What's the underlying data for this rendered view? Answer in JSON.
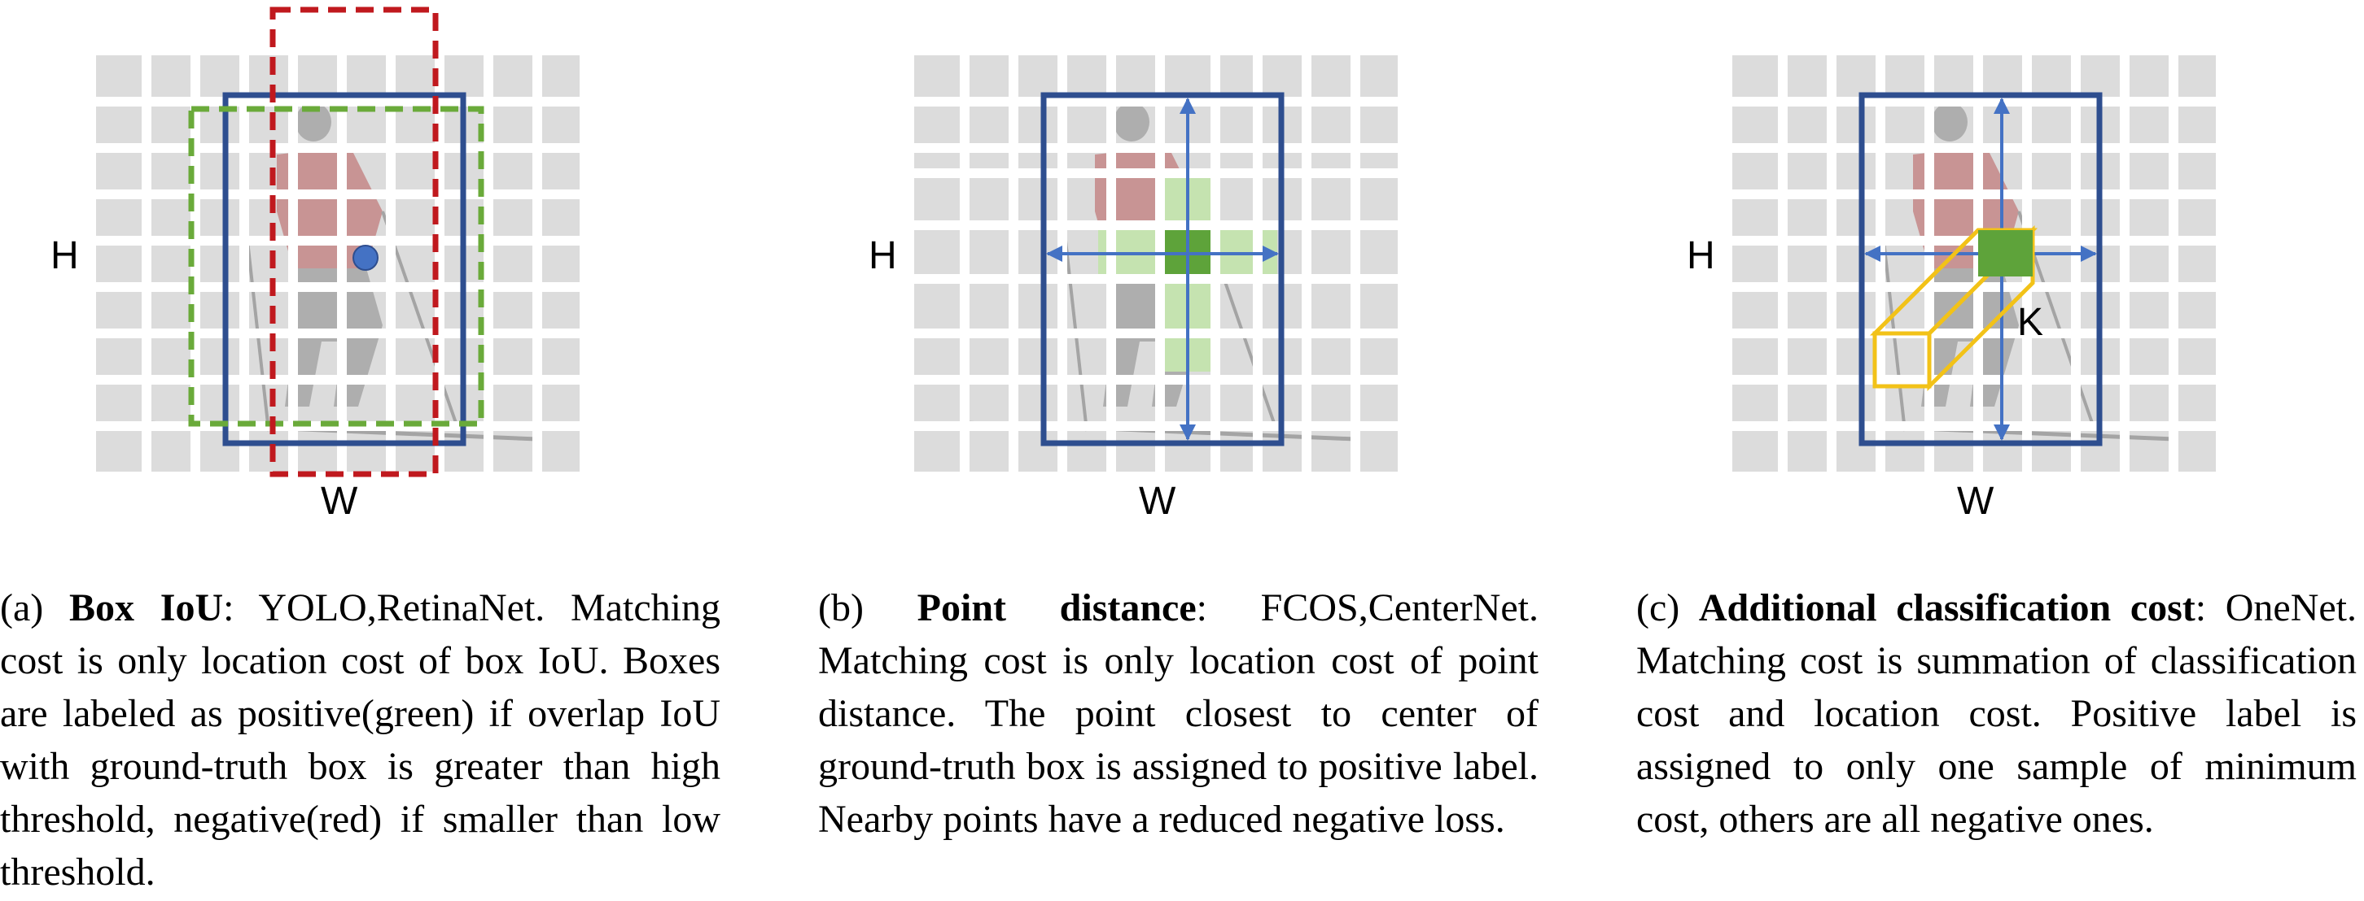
{
  "panels": [
    {
      "id": "a",
      "h_label": "H",
      "w_label": "W",
      "caption_prefix": "(a) ",
      "caption_bold": "Box IoU",
      "caption_rest": ": YOLO,RetinaNet. Match­ing cost is only location cost of box IoU. Boxes are labeled as positive(green) if overlap IoU with ground-truth box is greater than high threshold, negative(red) if smaller than low threshold."
    },
    {
      "id": "b",
      "h_label": "H",
      "w_label": "W",
      "caption_prefix": "(b) ",
      "caption_bold": "Point distance",
      "caption_rest": ": FCOS,CenterNet. Matching cost is only location cost of point distance. The point closest to center of ground-truth box is assigned to posi­tive label. Nearby points have a reduced negative loss."
    },
    {
      "id": "c",
      "h_label": "H",
      "w_label": "W",
      "k_label": "K",
      "caption_prefix": "(c) ",
      "caption_bold": "Additional classification cost",
      "caption_rest": ": OneNet. Matching cost is summation of classification cost and location cost. Positive label is assigned to only one sample of minimum cost, others are all negative ones."
    }
  ],
  "colors": {
    "gt_box": "#2e4e8f",
    "positive_green": "#6aaa3a",
    "negative_red": "#c0191e",
    "arrow_blue": "#4472c4",
    "center_dot": "#4472c4",
    "light_green": "#c5e3b0",
    "dark_green": "#5ea33a",
    "cube_yellow": "#f2c218",
    "grid_line": "#ffffff",
    "image_bg": "#d9d9d9"
  }
}
